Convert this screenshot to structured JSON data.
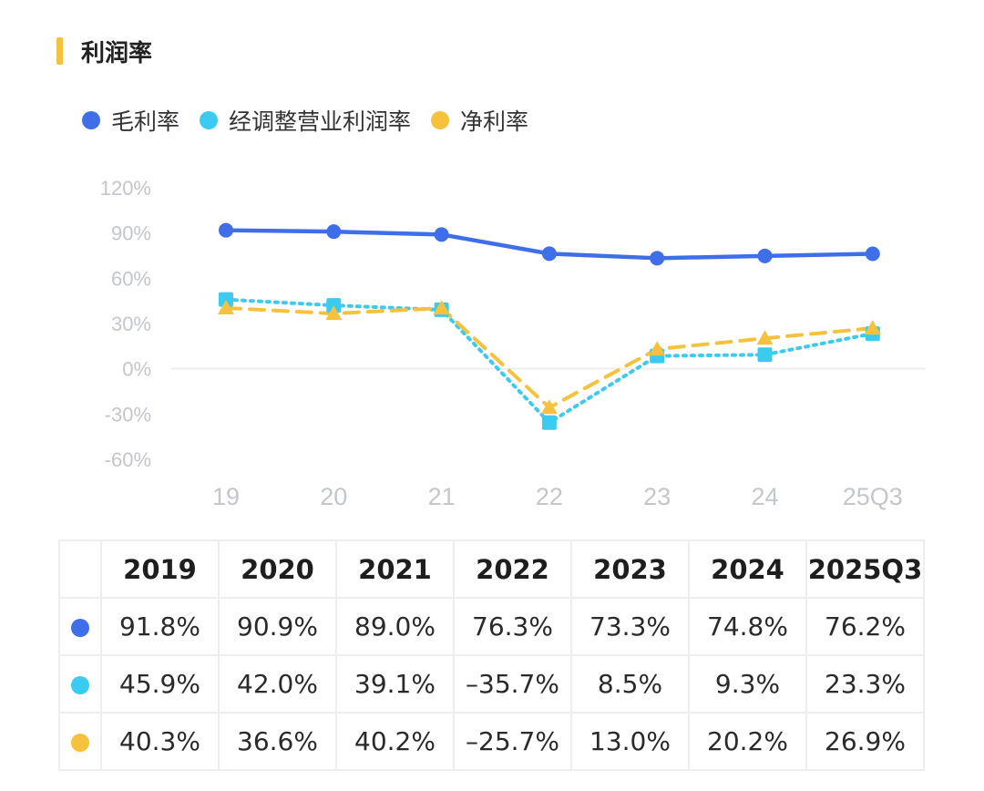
{
  "section": {
    "title": "利润率"
  },
  "colors": {
    "gross": "#3f6fe8",
    "operating": "#3ccbf0",
    "net": "#f6c23e",
    "axis_text": "#c3c6cc",
    "grid": "#eeeeee"
  },
  "chart_data": {
    "type": "line",
    "title": "利润率",
    "categories": [
      "19",
      "20",
      "21",
      "22",
      "23",
      "24",
      "25Q3"
    ],
    "ylim": [
      -60,
      120
    ],
    "yticks": [
      120,
      90,
      60,
      30,
      0,
      -30,
      -60
    ],
    "ytick_labels": [
      "120%",
      "90%",
      "60%",
      "30%",
      "0%",
      "-30%",
      "-60%"
    ],
    "legend_position": "top-left",
    "series": [
      {
        "name": "毛利率",
        "color": "#3f6fe8",
        "style": "solid",
        "marker": "circle",
        "values": [
          91.8,
          90.9,
          89.0,
          76.3,
          73.3,
          74.8,
          76.2
        ]
      },
      {
        "name": "经调整营业利润率",
        "color": "#3ccbf0",
        "style": "dotted",
        "marker": "square",
        "values": [
          45.9,
          42.0,
          39.1,
          -35.7,
          8.5,
          9.3,
          23.3
        ]
      },
      {
        "name": "净利率",
        "color": "#f6c23e",
        "style": "dashed",
        "marker": "triangle",
        "values": [
          40.3,
          36.6,
          40.2,
          -25.7,
          13.0,
          20.2,
          26.9
        ]
      }
    ]
  },
  "table": {
    "headers": [
      "2019",
      "2020",
      "2021",
      "2022",
      "2023",
      "2024",
      "2025Q3"
    ],
    "rows": [
      [
        "91.8%",
        "90.9%",
        "89.0%",
        "76.3%",
        "73.3%",
        "74.8%",
        "76.2%"
      ],
      [
        "45.9%",
        "42.0%",
        "39.1%",
        "–35.7%",
        "8.5%",
        "9.3%",
        "23.3%"
      ],
      [
        "40.3%",
        "36.6%",
        "40.2%",
        "–25.7%",
        "13.0%",
        "20.2%",
        "26.9%"
      ]
    ]
  }
}
